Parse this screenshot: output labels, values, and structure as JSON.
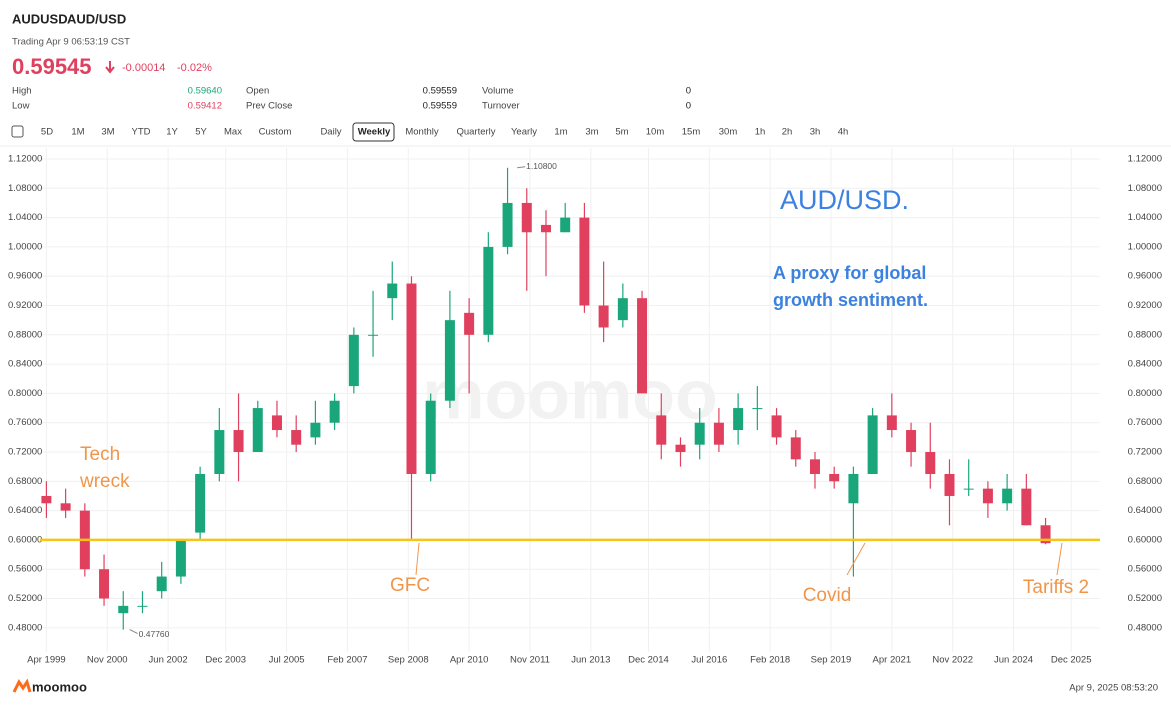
{
  "header": {
    "symbol": "AUDUSD",
    "name": "AUD/USD",
    "status": "Trading Apr 9 06:53:19 CST",
    "price": "0.59545",
    "change": "-0.00014",
    "change_pct": "-0.02%",
    "stats": [
      [
        "High",
        "0.59640",
        "Open",
        "0.59559",
        "Volume",
        "0"
      ],
      [
        "Low",
        "0.59412",
        "Prev Close",
        "0.59559",
        "Turnover",
        "0"
      ]
    ]
  },
  "toolbar": [
    "5D",
    "1M",
    "3M",
    "YTD",
    "1Y",
    "5Y",
    "Max",
    "Custom",
    "Daily",
    "Weekly",
    "Monthly",
    "Quarterly",
    "Yearly",
    "1m",
    "3m",
    "5m",
    "10m",
    "15m",
    "30m",
    "1h",
    "2h",
    "3h",
    "4h"
  ],
  "chart_data": {
    "type": "candlestick",
    "up_color": "#1aa67b",
    "down_color": "#e0405e",
    "x": [
      "1999-04",
      "1999-10",
      "2000-04",
      "2000-10",
      "2001-04",
      "2001-10",
      "2002-04",
      "2002-10",
      "2003-04",
      "2003-10",
      "2004-04",
      "2004-10",
      "2005-04",
      "2005-10",
      "2006-04",
      "2006-10",
      "2007-04",
      "2007-10",
      "2008-04",
      "2008-10",
      "2009-04",
      "2009-10",
      "2010-04",
      "2010-10",
      "2011-04",
      "2011-10",
      "2012-04",
      "2012-10",
      "2013-04",
      "2013-10",
      "2014-04",
      "2014-10",
      "2015-04",
      "2015-10",
      "2016-04",
      "2016-10",
      "2017-04",
      "2017-10",
      "2018-04",
      "2018-10",
      "2019-04",
      "2019-10",
      "2020-04",
      "2020-10",
      "2021-04",
      "2021-10",
      "2022-04",
      "2022-10",
      "2023-04",
      "2023-10",
      "2024-04",
      "2024-10",
      "2025-04"
    ],
    "open": [
      0.66,
      0.65,
      0.64,
      0.56,
      0.5,
      0.51,
      0.53,
      0.55,
      0.61,
      0.69,
      0.75,
      0.72,
      0.77,
      0.75,
      0.74,
      0.76,
      0.81,
      0.88,
      0.93,
      0.95,
      0.69,
      0.79,
      0.91,
      0.88,
      1.0,
      1.06,
      1.03,
      1.02,
      1.04,
      0.92,
      0.9,
      0.93,
      0.77,
      0.73,
      0.73,
      0.76,
      0.75,
      0.78,
      0.77,
      0.74,
      0.71,
      0.69,
      0.65,
      0.69,
      0.77,
      0.75,
      0.72,
      0.69,
      0.67,
      0.67,
      0.65,
      0.67,
      0.62
    ],
    "high": [
      0.68,
      0.67,
      0.65,
      0.58,
      0.53,
      0.53,
      0.57,
      0.6,
      0.7,
      0.78,
      0.8,
      0.79,
      0.79,
      0.77,
      0.79,
      0.8,
      0.89,
      0.94,
      0.98,
      0.96,
      0.8,
      0.94,
      0.93,
      1.02,
      1.108,
      1.08,
      1.05,
      1.06,
      1.06,
      0.98,
      0.95,
      0.94,
      0.8,
      0.74,
      0.78,
      0.78,
      0.8,
      0.81,
      0.78,
      0.75,
      0.72,
      0.7,
      0.7,
      0.78,
      0.8,
      0.76,
      0.76,
      0.71,
      0.71,
      0.68,
      0.69,
      0.69,
      0.63
    ],
    "low": [
      0.63,
      0.63,
      0.55,
      0.51,
      0.4776,
      0.5,
      0.52,
      0.54,
      0.6,
      0.68,
      0.68,
      0.72,
      0.74,
      0.72,
      0.73,
      0.75,
      0.8,
      0.85,
      0.9,
      0.6,
      0.68,
      0.78,
      0.8,
      0.87,
      0.99,
      0.94,
      0.96,
      1.02,
      0.91,
      0.87,
      0.89,
      0.8,
      0.71,
      0.7,
      0.71,
      0.72,
      0.73,
      0.75,
      0.73,
      0.7,
      0.67,
      0.67,
      0.55,
      0.69,
      0.74,
      0.7,
      0.67,
      0.62,
      0.66,
      0.63,
      0.64,
      0.62,
      0.5941
    ],
    "close": [
      0.65,
      0.64,
      0.56,
      0.52,
      0.51,
      0.51,
      0.55,
      0.6,
      0.69,
      0.75,
      0.72,
      0.78,
      0.75,
      0.73,
      0.76,
      0.79,
      0.88,
      0.88,
      0.95,
      0.69,
      0.79,
      0.9,
      0.88,
      1.0,
      1.06,
      1.02,
      1.02,
      1.04,
      0.92,
      0.89,
      0.93,
      0.8,
      0.73,
      0.72,
      0.76,
      0.73,
      0.78,
      0.78,
      0.74,
      0.71,
      0.69,
      0.68,
      0.69,
      0.77,
      0.75,
      0.72,
      0.69,
      0.66,
      0.67,
      0.65,
      0.67,
      0.62,
      0.5955
    ],
    "xlim": [
      "1999-02",
      "2026-09"
    ],
    "xticks": [
      {
        "value": "1999-04",
        "label": "Apr 1999"
      },
      {
        "value": "2000-11",
        "label": "Nov 2000"
      },
      {
        "value": "2002-06",
        "label": "Jun 2002"
      },
      {
        "value": "2003-12",
        "label": "Dec 2003"
      },
      {
        "value": "2005-07",
        "label": "Jul 2005"
      },
      {
        "value": "2007-02",
        "label": "Feb 2007"
      },
      {
        "value": "2008-09",
        "label": "Sep 2008"
      },
      {
        "value": "2010-04",
        "label": "Apr 2010"
      },
      {
        "value": "2011-11",
        "label": "Nov 2011"
      },
      {
        "value": "2013-06",
        "label": "Jun 2013"
      },
      {
        "value": "2014-12",
        "label": "Dec 2014"
      },
      {
        "value": "2016-07",
        "label": "Jul 2016"
      },
      {
        "value": "2018-02",
        "label": "Feb 2018"
      },
      {
        "value": "2019-09",
        "label": "Sep 2019"
      },
      {
        "value": "2021-04",
        "label": "Apr 2021"
      },
      {
        "value": "2022-11",
        "label": "Nov 2022"
      },
      {
        "value": "2024-06",
        "label": "Jun 2024"
      },
      {
        "value": "2025-12",
        "label": "Dec 2025"
      }
    ],
    "ylim": [
      0.447,
      1.135
    ],
    "yticks": [
      {
        "value": 0.48,
        "label": "0.48000"
      },
      {
        "value": 0.52,
        "label": "0.52000"
      },
      {
        "value": 0.56,
        "label": "0.56000"
      },
      {
        "value": 0.6,
        "label": "0.60000"
      },
      {
        "value": 0.64,
        "label": "0.64000"
      },
      {
        "value": 0.68,
        "label": "0.68000"
      },
      {
        "value": 0.72,
        "label": "0.72000"
      },
      {
        "value": 0.76,
        "label": "0.76000"
      },
      {
        "value": 0.8,
        "label": "0.80000"
      },
      {
        "value": 0.84,
        "label": "0.84000"
      },
      {
        "value": 0.88,
        "label": "0.88000"
      },
      {
        "value": 0.92,
        "label": "0.92000"
      },
      {
        "value": 0.96,
        "label": "0.96000"
      },
      {
        "value": 1.0,
        "label": "1.00000"
      },
      {
        "value": 1.04,
        "label": "1.04000"
      },
      {
        "value": 1.08,
        "label": "1.08000"
      },
      {
        "value": 1.12,
        "label": "1.12000"
      }
    ],
    "grid": true,
    "hline": {
      "value": 0.6,
      "color": "#f5c518"
    },
    "extremes": [
      {
        "x": "2011-07",
        "value": 1.108,
        "label": "1.10800"
      },
      {
        "x": "2001-06",
        "value": 0.4776,
        "label": "0.47760"
      }
    ],
    "title": "AUD/USD.",
    "subtitle": [
      "A proxy for global",
      "growth sentiment."
    ],
    "annotations": [
      [
        "Tech",
        "wreck"
      ],
      [
        "GFC"
      ],
      [
        "Covid"
      ],
      [
        "Tariffs 2"
      ]
    ]
  },
  "footer": {
    "brand": "moomoo",
    "timestamp": "Apr 9, 2025 08:53:20"
  }
}
